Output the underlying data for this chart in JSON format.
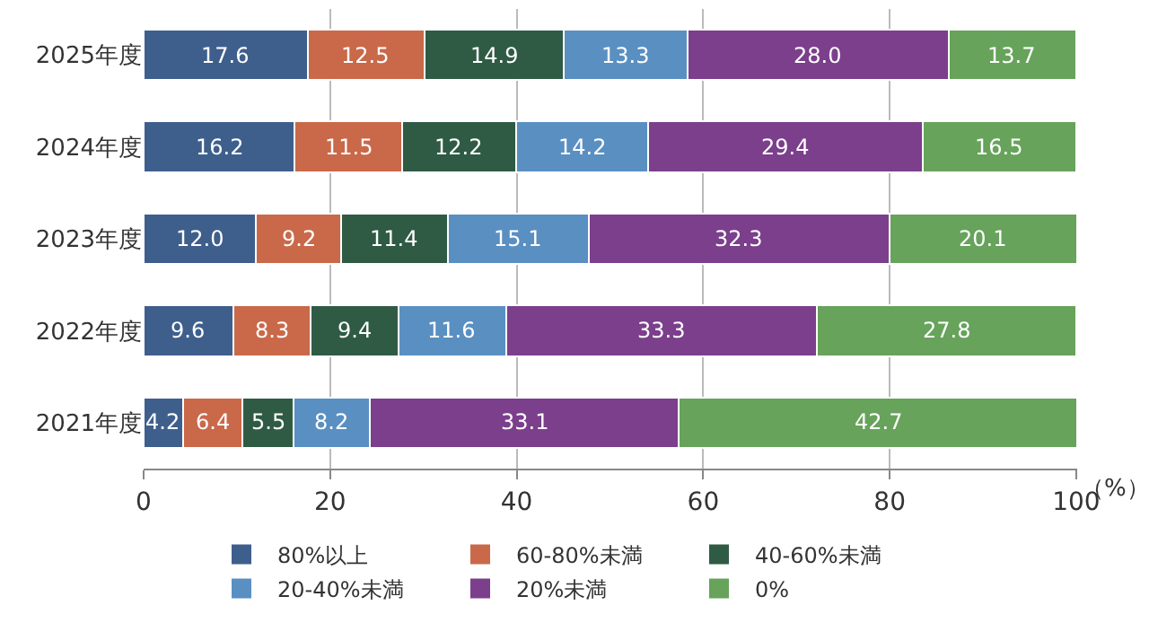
{
  "chart_data": {
    "type": "bar",
    "orientation": "horizontal",
    "stacked": true,
    "xlabel": "（%）",
    "categories": [
      "2025年度",
      "2024年度",
      "2023年度",
      "2022年度",
      "2021年度"
    ],
    "xlim": [
      0,
      100.1
    ],
    "xticks": [
      0,
      20,
      40,
      60,
      80,
      100
    ],
    "grid": "x",
    "legend": "bottom",
    "series": [
      {
        "name": "80%以上",
        "color": "#3e5f8c",
        "values": [
          17.6,
          16.2,
          12.0,
          9.6,
          4.2
        ],
        "value_labels": [
          "17.6",
          "16.2",
          "12.0",
          "9.6",
          "4.2"
        ]
      },
      {
        "name": "60-80%未満",
        "color": "#c9694a",
        "values": [
          12.5,
          11.5,
          9.2,
          8.3,
          6.4
        ],
        "value_labels": [
          "12.5",
          "11.5",
          "9.2",
          "8.3",
          "6.4"
        ]
      },
      {
        "name": "40-60%未満",
        "color": "#2f5b45",
        "values": [
          14.9,
          12.2,
          11.4,
          9.4,
          5.5
        ],
        "value_labels": [
          "14.9",
          "12.2",
          "11.4",
          "9.4",
          "5.5"
        ]
      },
      {
        "name": "20-40%未満",
        "color": "#5a8fc2",
        "values": [
          13.3,
          14.2,
          15.1,
          11.6,
          8.2
        ],
        "value_labels": [
          "13.3",
          "14.2",
          "15.1",
          "11.6",
          "8.2"
        ]
      },
      {
        "name": "20%未満",
        "color": "#7b3f8c",
        "values": [
          28.0,
          29.4,
          32.3,
          33.3,
          33.1
        ],
        "value_labels": [
          "28.0",
          "29.4",
          "32.3",
          "33.3",
          "33.1"
        ]
      },
      {
        "name": "0%",
        "color": "#67a35b",
        "values": [
          13.7,
          16.5,
          20.1,
          27.8,
          42.7
        ],
        "value_labels": [
          "13.7",
          "16.5",
          "20.1",
          "27.8",
          "42.7"
        ]
      }
    ]
  }
}
